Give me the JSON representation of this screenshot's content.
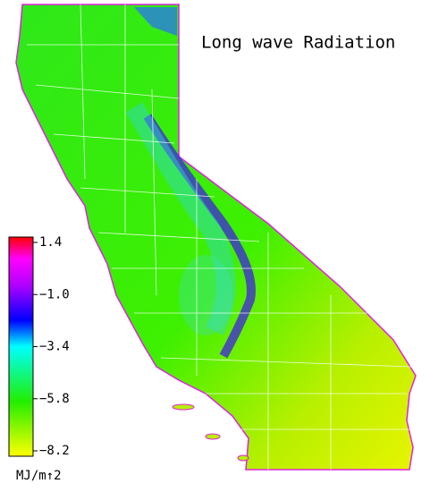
{
  "title": "Long wave Radiation",
  "colorbar": {
    "lim": [
      -8.2,
      1.4
    ],
    "ticks": [
      1.4,
      {
        "value": -1.0,
        "label": "−1.0"
      },
      {
        "value": -3.4,
        "label": "−3.4"
      },
      {
        "value": -5.8,
        "label": "−5.8"
      },
      {
        "value": -8.2,
        "label": "−8.2"
      }
    ],
    "unit": "MJ/m↑2"
  }
}
